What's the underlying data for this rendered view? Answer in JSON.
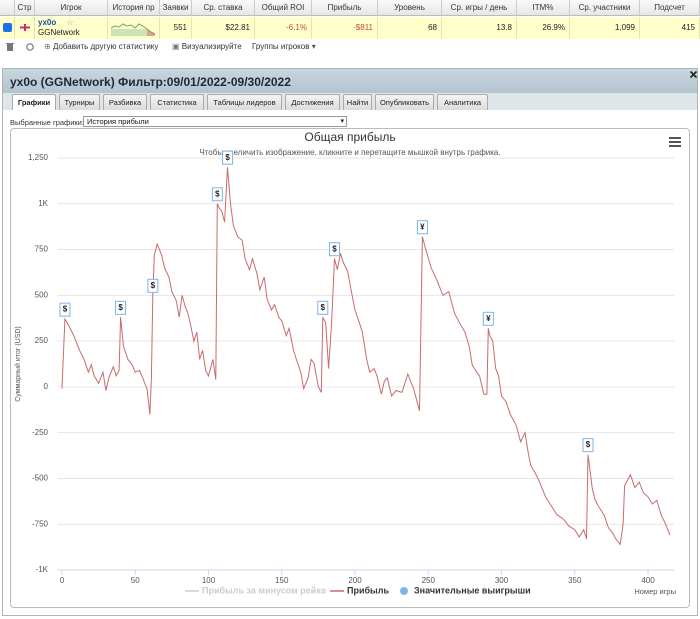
{
  "table": {
    "headers": [
      "Стр",
      "Игрок",
      "История пр",
      "Заявки",
      "Ср. ставка",
      "Общий ROI",
      "Прибыль",
      "Уровень",
      "Ср. игры / день",
      "ITM%",
      "Ср. участники",
      "Подсчет"
    ],
    "row": {
      "player": "yx0o",
      "network": "GGNetwork",
      "entries": "551",
      "avg_stake": "$22.81",
      "roi": "-6.1%",
      "profit": "-$811",
      "level": "68",
      "games_per_day": "13.8",
      "itm": "26.9%",
      "avg_field": "1,099",
      "count": "415"
    }
  },
  "toolbar": {
    "add_stat": "Добавить другую статистику",
    "visualize": "Визуализируйте",
    "groups": "Группы игроков"
  },
  "panel": {
    "title": "yx0o (GGNetwork) Фильтр:09/01/2022-09/30/2022",
    "tabs": [
      "Графики",
      "Турниры",
      "Разбивка",
      "Статистика",
      "Таблицы лидеров",
      "Достижения",
      "Найти",
      "Опубликовать",
      "Аналитика"
    ],
    "select_label": "Выбранные графики:",
    "select_value": "История прибыли"
  },
  "chart_data": {
    "type": "line",
    "title": "Общая прибыль",
    "subtitle": "Чтобы увеличить изображение, кликните и перетащите мышкой внутрь графика.",
    "y_label": "Суммарный итог (USD)",
    "x_label": "Номер игры",
    "xlim": [
      -3,
      418
    ],
    "ylim": [
      -1000,
      1250
    ],
    "xticks": [
      0,
      50,
      100,
      150,
      200,
      250,
      300,
      350,
      400
    ],
    "yticks": [
      {
        "value": -1000,
        "label": "-1K"
      },
      -750,
      -500,
      -250,
      0,
      250,
      500,
      750,
      {
        "value": 1000,
        "label": "1K"
      },
      {
        "value": 1250,
        "label": "1,250"
      }
    ],
    "grid": true,
    "series": [
      {
        "name": "Прибыль за минусом рейка",
        "color": "#cccccc",
        "visible": false
      },
      {
        "name": "Прибыль",
        "color": "#c96b6b",
        "visible": true,
        "x": [
          0,
          2,
          5,
          8,
          12,
          15,
          18,
          20,
          22,
          25,
          28,
          30,
          32,
          35,
          37,
          39,
          40,
          42,
          45,
          48,
          50,
          53,
          55,
          58,
          60,
          61,
          62,
          63,
          65,
          68,
          70,
          73,
          75,
          78,
          80,
          82,
          84,
          86,
          88,
          90,
          92,
          94,
          96,
          98,
          100,
          103,
          105,
          106,
          107,
          109,
          111,
          113,
          115,
          117,
          120,
          123,
          125,
          128,
          130,
          133,
          135,
          138,
          140,
          143,
          145,
          148,
          150,
          153,
          155,
          158,
          160,
          163,
          165,
          168,
          170,
          172,
          175,
          177,
          178,
          180,
          182,
          184,
          186,
          188,
          190,
          192,
          195,
          198,
          200,
          203,
          205,
          208,
          210,
          213,
          215,
          218,
          220,
          222,
          225,
          228,
          232,
          236,
          240,
          244,
          246,
          248,
          252,
          256,
          260,
          264,
          268,
          272,
          275,
          278,
          280,
          283,
          285,
          288,
          290,
          291,
          292,
          294,
          296,
          298,
          300,
          303,
          306,
          310,
          313,
          316,
          318,
          320,
          323,
          326,
          330,
          334,
          338,
          342,
          346,
          350,
          353,
          356,
          358,
          359,
          362,
          364,
          366,
          370,
          373,
          376,
          378,
          381,
          383,
          384,
          388,
          391,
          394,
          397,
          400,
          403,
          406,
          409,
          412,
          415
        ],
        "values": [
          -10,
          370,
          330,
          280,
          200,
          150,
          80,
          120,
          60,
          20,
          80,
          -20,
          50,
          110,
          60,
          90,
          380,
          220,
          150,
          120,
          80,
          90,
          50,
          -10,
          -150,
          50,
          500,
          720,
          780,
          720,
          650,
          600,
          520,
          470,
          380,
          500,
          440,
          400,
          330,
          250,
          300,
          150,
          200,
          90,
          60,
          150,
          40,
          1000,
          980,
          960,
          900,
          1200,
          1000,
          880,
          820,
          800,
          700,
          640,
          700,
          620,
          530,
          600,
          480,
          420,
          450,
          380,
          360,
          280,
          320,
          200,
          150,
          80,
          -10,
          50,
          150,
          130,
          0,
          -30,
          380,
          350,
          100,
          350,
          700,
          640,
          730,
          680,
          630,
          500,
          420,
          350,
          300,
          150,
          80,
          100,
          60,
          -40,
          30,
          50,
          -50,
          -20,
          -30,
          70,
          -10,
          -130,
          820,
          760,
          650,
          580,
          500,
          520,
          400,
          340,
          300,
          220,
          120,
          80,
          60,
          -40,
          -40,
          320,
          280,
          250,
          100,
          60,
          -50,
          -80,
          -150,
          -210,
          -300,
          -250,
          -350,
          -430,
          -470,
          -520,
          -600,
          -650,
          -700,
          -720,
          -760,
          -780,
          -820,
          -780,
          -830,
          -370,
          -560,
          -620,
          -650,
          -700,
          -770,
          -800,
          -830,
          -860,
          -750,
          -540,
          -480,
          -550,
          -520,
          -580,
          -600,
          -640,
          -620,
          -700,
          -750,
          -810
        ]
      }
    ],
    "big_wins": {
      "name": "Значительные выигрыши",
      "color": "#7cb5ec",
      "x": [
        2,
        40,
        62,
        106,
        113,
        178,
        186,
        246,
        291,
        359
      ],
      "values": [
        370,
        380,
        500,
        1000,
        1200,
        380,
        700,
        820,
        320,
        -370
      ],
      "labels": [
        "$",
        "$",
        "$",
        "$",
        "$",
        "$",
        "$",
        "¥",
        "¥",
        "$"
      ]
    }
  }
}
